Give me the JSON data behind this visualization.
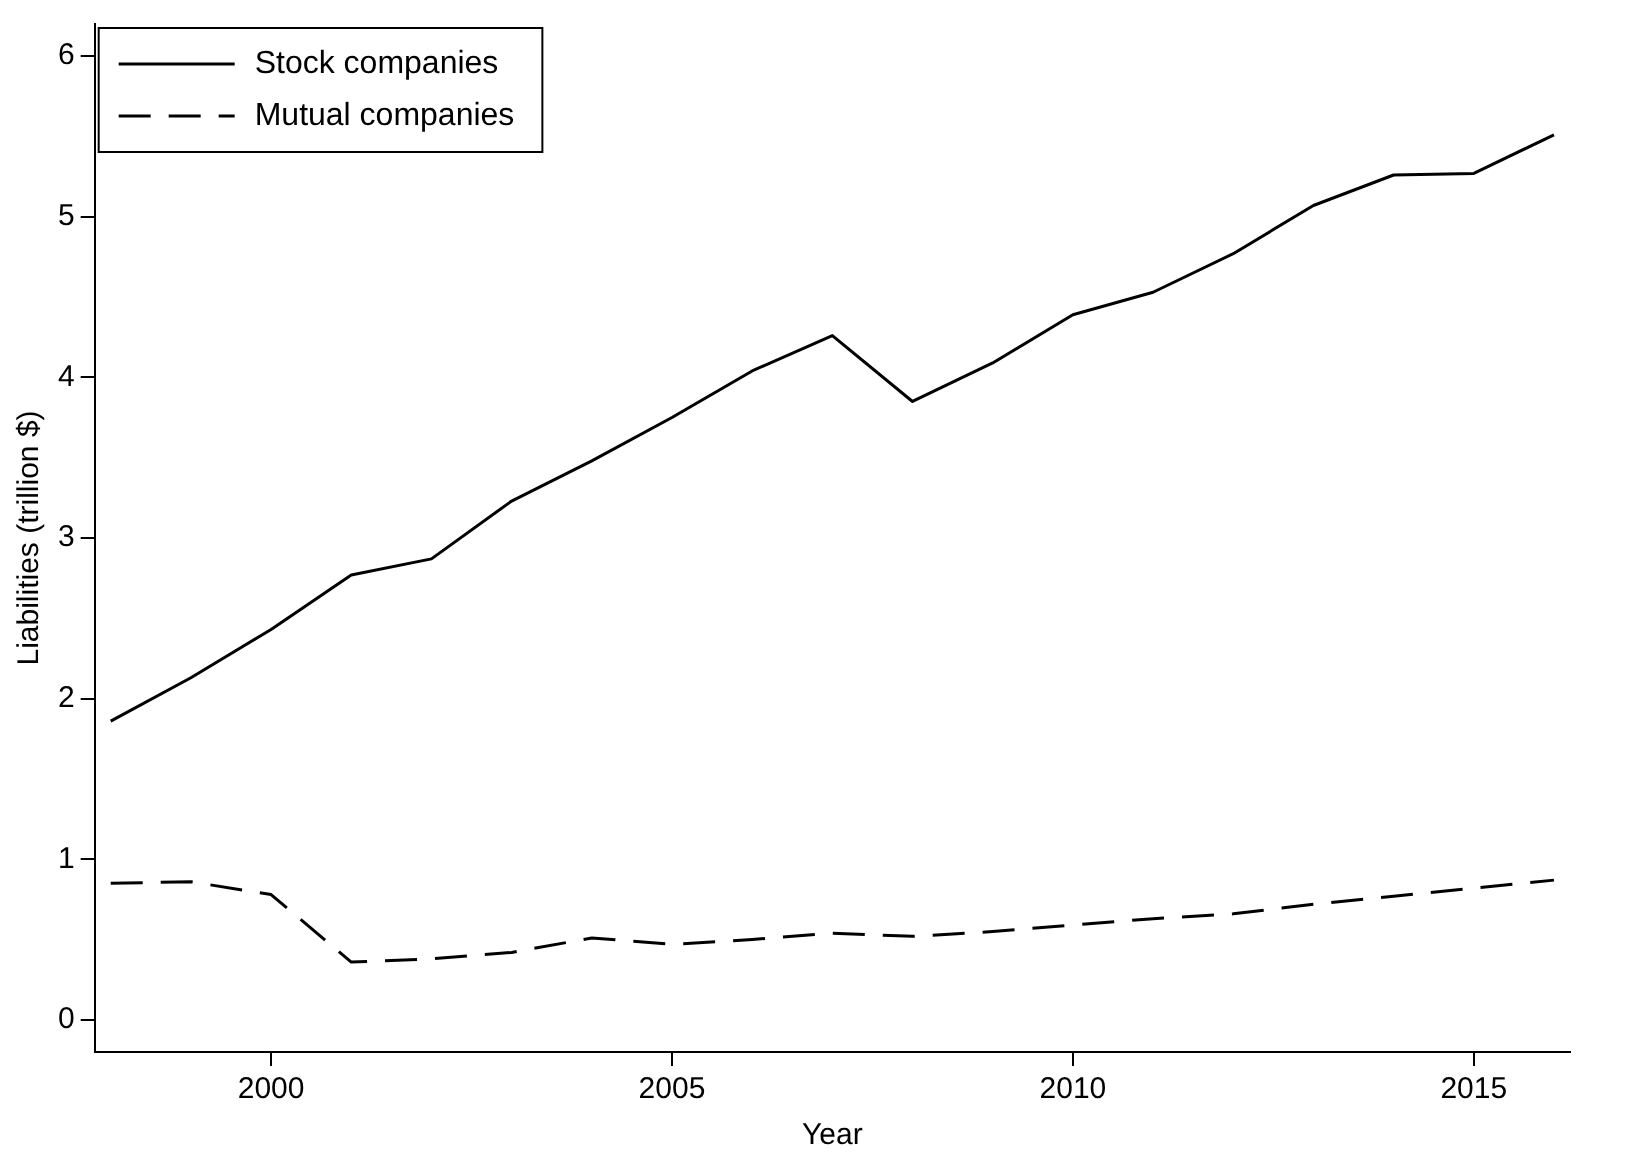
{
  "chart_data": {
    "type": "line",
    "xlabel": "Year",
    "ylabel": "Liabilities (trillion $)",
    "x": [
      1998,
      1999,
      2000,
      2001,
      2002,
      2003,
      2004,
      2005,
      2006,
      2007,
      2008,
      2009,
      2010,
      2011,
      2012,
      2013,
      2014,
      2015,
      2016
    ],
    "series": [
      {
        "name": "Stock companies",
        "color": "#000000",
        "line_style": "solid",
        "values": [
          1.86,
          2.13,
          2.43,
          2.77,
          2.87,
          3.23,
          3.48,
          3.75,
          4.04,
          4.26,
          3.85,
          4.09,
          4.39,
          4.53,
          4.77,
          5.07,
          5.26,
          5.27,
          5.51
        ]
      },
      {
        "name": "Mutual companies",
        "color": "#000000",
        "line_style": "dashed",
        "values": [
          0.85,
          0.86,
          0.78,
          0.36,
          0.38,
          0.42,
          0.51,
          0.47,
          0.5,
          0.54,
          0.52,
          0.55,
          0.59,
          0.63,
          0.66,
          0.72,
          0.77,
          0.82,
          0.87
        ]
      }
    ],
    "xlim": [
      1997.8,
      2016.2
    ],
    "xticks": [
      2000,
      2005,
      2010,
      2015
    ],
    "ylim": [
      -0.2,
      6.2
    ],
    "yticks": [
      0,
      1,
      2,
      3,
      4,
      5,
      6
    ],
    "grid": false,
    "legend": "top left",
    "marker": "none"
  }
}
